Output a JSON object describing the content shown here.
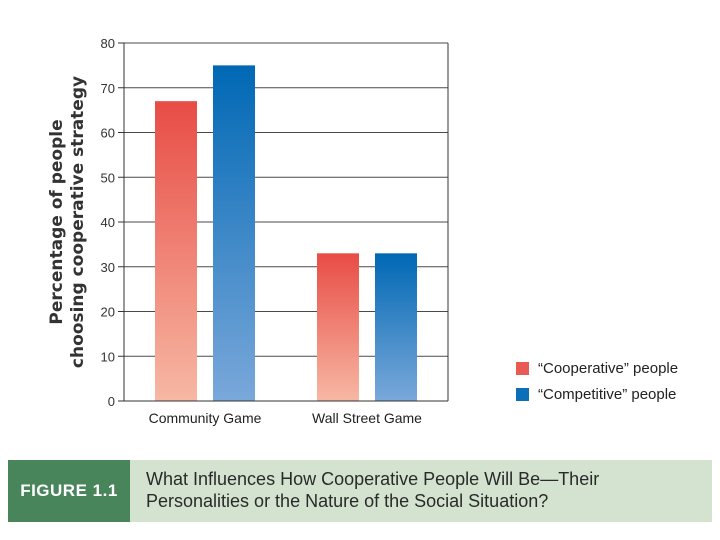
{
  "chart_data": {
    "type": "bar",
    "title": "",
    "xlabel": "",
    "ylabel": [
      "Percentage of people",
      "choosing cooperative strategy"
    ],
    "ylim": [
      0,
      80
    ],
    "yticks": [
      0,
      10,
      20,
      30,
      40,
      50,
      60,
      70,
      80
    ],
    "grid": true,
    "legend_position": "bottom-right",
    "categories": [
      "Community Game",
      "Wall Street Game"
    ],
    "series": [
      {
        "name": "“Cooperative” people",
        "color": "#e95a52",
        "values": [
          67,
          33
        ]
      },
      {
        "name": "“Competitive” people",
        "color": "#0c6fb8",
        "values": [
          75,
          33
        ]
      }
    ]
  },
  "caption": {
    "label": "FIGURE 1.1",
    "text_line1": "What Influences How Cooperative People Will Be—Their",
    "text_line2": "Personalities or the Nature of the Social Situation?"
  }
}
